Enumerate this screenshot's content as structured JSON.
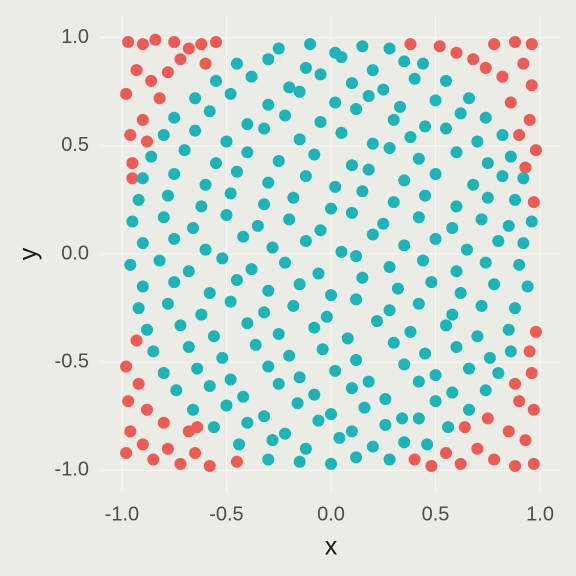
{
  "chart_data": {
    "type": "scatter",
    "x_label": "x",
    "y_label": "y",
    "xlim": [
      -1.1,
      1.1
    ],
    "ylim": [
      -1.1,
      1.1
    ],
    "xticks": [
      {
        "value": -1,
        "label": "-1.0"
      },
      {
        "value": -0.5,
        "label": "-0.5"
      },
      {
        "value": 0,
        "label": "0.0"
      },
      {
        "value": 0.5,
        "label": "0.5"
      },
      {
        "value": 1,
        "label": "1.0"
      }
    ],
    "yticks": [
      {
        "value": -1,
        "label": "-1.0"
      },
      {
        "value": -0.5,
        "label": "-0.5"
      },
      {
        "value": 0,
        "label": "0.0"
      },
      {
        "value": 0.5,
        "label": "0.5"
      },
      {
        "value": 1,
        "label": "1.0"
      }
    ],
    "grid": true,
    "series": [
      {
        "color": "#F05A55",
        "x": [
          -0.97,
          -0.9,
          -0.84,
          -0.75,
          -0.68,
          -0.62,
          -0.55,
          -0.93,
          -0.86,
          -0.98,
          -0.82,
          -0.9,
          -0.96,
          -0.88,
          -0.72,
          -0.6,
          -0.78,
          -0.95,
          -0.95,
          0.38,
          0.52,
          0.6,
          0.68,
          0.78,
          0.88,
          0.96,
          0.92,
          0.82,
          0.74,
          0.96,
          0.86,
          0.95,
          0.9,
          0.98,
          0.93,
          0.97,
          -0.98,
          -0.92,
          -0.97,
          -0.88,
          -0.96,
          -0.9,
          -0.98,
          -0.85,
          -0.78,
          -0.72,
          -0.65,
          -0.58,
          -0.68,
          -0.8,
          -0.45,
          -0.93,
          -0.64,
          0.4,
          0.48,
          0.55,
          0.62,
          0.7,
          0.78,
          0.88,
          0.97,
          0.93,
          0.85,
          0.75,
          0.97,
          0.9,
          0.96,
          0.88,
          0.64,
          0.98,
          0.95
        ],
        "values": [
          0.98,
          0.97,
          0.99,
          0.98,
          0.95,
          0.97,
          0.98,
          0.85,
          0.8,
          0.74,
          0.72,
          0.62,
          0.55,
          0.52,
          0.9,
          0.88,
          0.84,
          0.42,
          0.35,
          0.97,
          0.96,
          0.93,
          0.9,
          0.97,
          0.98,
          0.97,
          0.88,
          0.82,
          0.86,
          0.78,
          0.7,
          0.62,
          0.55,
          0.48,
          0.4,
          0.24,
          -0.52,
          -0.6,
          -0.68,
          -0.72,
          -0.82,
          -0.88,
          -0.92,
          -0.95,
          -0.9,
          -0.97,
          -0.92,
          -0.98,
          -0.82,
          -0.78,
          -0.96,
          -0.4,
          -0.8,
          -0.95,
          -0.98,
          -0.92,
          -0.97,
          -0.9,
          -0.95,
          -0.98,
          -0.97,
          -0.86,
          -0.82,
          -0.76,
          -0.72,
          -0.68,
          -0.55,
          -0.6,
          -0.8,
          -0.36,
          -0.45
        ]
      },
      {
        "color": "#19B5B8",
        "x": [
          -0.25,
          -0.1,
          0.02,
          0.15,
          0.28,
          -0.45,
          -0.3,
          -0.12,
          0.05,
          0.2,
          0.35,
          0.44,
          -0.55,
          -0.38,
          -0.2,
          -0.05,
          0.1,
          0.25,
          0.4,
          0.55,
          -0.65,
          -0.48,
          -0.3,
          -0.15,
          0.02,
          0.18,
          0.33,
          0.5,
          0.66,
          -0.75,
          -0.58,
          -0.4,
          -0.22,
          -0.05,
          0.12,
          0.3,
          0.45,
          0.62,
          0.74,
          -0.8,
          -0.65,
          -0.5,
          -0.32,
          -0.15,
          0.05,
          0.2,
          0.38,
          0.55,
          0.7,
          0.82,
          -0.86,
          -0.7,
          -0.55,
          -0.4,
          -0.25,
          -0.08,
          0.1,
          0.28,
          0.42,
          0.6,
          0.75,
          0.86,
          -0.9,
          -0.75,
          -0.6,
          -0.45,
          -0.3,
          -0.12,
          0.02,
          0.18,
          0.35,
          0.5,
          0.68,
          0.82,
          0.92,
          -0.92,
          -0.78,
          -0.62,
          -0.48,
          -0.32,
          -0.18,
          0.0,
          0.15,
          0.3,
          0.45,
          0.6,
          0.75,
          0.88,
          -0.95,
          -0.8,
          -0.66,
          -0.5,
          -0.35,
          -0.2,
          -0.05,
          0.1,
          0.25,
          0.42,
          0.58,
          0.72,
          0.85,
          0.96,
          -0.9,
          -0.75,
          -0.6,
          -0.42,
          -0.28,
          -0.12,
          0.05,
          0.2,
          0.35,
          0.5,
          0.65,
          0.8,
          0.92,
          -0.96,
          -0.82,
          -0.68,
          -0.52,
          -0.38,
          -0.22,
          -0.06,
          0.12,
          0.28,
          0.44,
          0.6,
          0.74,
          0.9,
          -0.9,
          -0.75,
          -0.58,
          -0.45,
          -0.3,
          -0.15,
          0.0,
          0.15,
          0.32,
          0.48,
          0.62,
          0.78,
          0.94,
          -0.92,
          -0.78,
          -0.62,
          -0.48,
          -0.32,
          -0.18,
          -0.02,
          0.12,
          0.28,
          0.42,
          0.58,
          0.72,
          0.88,
          -0.88,
          -0.72,
          -0.56,
          -0.4,
          -0.25,
          -0.08,
          0.08,
          0.22,
          0.38,
          0.55,
          0.7,
          0.85,
          -0.85,
          -0.68,
          -0.52,
          -0.36,
          -0.2,
          -0.04,
          0.12,
          0.3,
          0.45,
          0.6,
          0.76,
          0.86,
          -0.8,
          -0.64,
          -0.48,
          -0.3,
          -0.15,
          0.02,
          0.18,
          0.35,
          0.5,
          0.66,
          0.8,
          -0.74,
          -0.58,
          -0.42,
          -0.25,
          -0.08,
          0.1,
          0.26,
          0.42,
          0.58,
          0.74,
          -0.66,
          -0.5,
          -0.32,
          -0.16,
          0.0,
          0.16,
          0.34,
          0.5,
          0.66,
          -0.56,
          -0.4,
          -0.22,
          -0.06,
          0.1,
          0.26,
          0.42,
          0.56,
          -0.44,
          -0.28,
          -0.12,
          0.04,
          0.2,
          0.35,
          0.46,
          -0.3,
          -0.15,
          0.0,
          0.12,
          0.28
        ],
        "values": [
          0.95,
          0.97,
          0.93,
          0.96,
          0.95,
          0.88,
          0.9,
          0.86,
          0.91,
          0.85,
          0.89,
          0.88,
          0.8,
          0.82,
          0.77,
          0.83,
          0.79,
          0.76,
          0.81,
          0.8,
          0.72,
          0.74,
          0.69,
          0.75,
          0.7,
          0.73,
          0.68,
          0.71,
          0.72,
          0.63,
          0.66,
          0.6,
          0.64,
          0.61,
          0.67,
          0.62,
          0.59,
          0.65,
          0.63,
          0.55,
          0.57,
          0.52,
          0.58,
          0.53,
          0.56,
          0.51,
          0.54,
          0.58,
          0.52,
          0.55,
          0.45,
          0.48,
          0.42,
          0.47,
          0.43,
          0.46,
          0.41,
          0.49,
          0.44,
          0.47,
          0.42,
          0.45,
          0.35,
          0.37,
          0.32,
          0.38,
          0.33,
          0.36,
          0.31,
          0.39,
          0.34,
          0.37,
          0.32,
          0.36,
          0.35,
          0.25,
          0.27,
          0.22,
          0.28,
          0.23,
          0.26,
          0.21,
          0.29,
          0.24,
          0.27,
          0.22,
          0.26,
          0.25,
          0.15,
          0.17,
          0.12,
          0.18,
          0.13,
          0.16,
          0.11,
          0.19,
          0.14,
          0.17,
          0.12,
          0.16,
          0.13,
          0.15,
          0.05,
          0.07,
          0.02,
          0.08,
          0.03,
          0.06,
          0.01,
          0.09,
          0.04,
          0.07,
          0.02,
          0.06,
          0.05,
          -0.05,
          -0.03,
          -0.08,
          -0.02,
          -0.07,
          -0.04,
          -0.09,
          -0.01,
          -0.06,
          -0.03,
          -0.08,
          -0.04,
          -0.05,
          -0.15,
          -0.13,
          -0.18,
          -0.12,
          -0.17,
          -0.14,
          -0.19,
          -0.11,
          -0.16,
          -0.13,
          -0.18,
          -0.14,
          -0.15,
          -0.25,
          -0.23,
          -0.28,
          -0.22,
          -0.27,
          -0.24,
          -0.29,
          -0.21,
          -0.26,
          -0.23,
          -0.28,
          -0.24,
          -0.25,
          -0.35,
          -0.33,
          -0.38,
          -0.32,
          -0.37,
          -0.34,
          -0.39,
          -0.31,
          -0.36,
          -0.33,
          -0.38,
          -0.35,
          -0.45,
          -0.43,
          -0.48,
          -0.42,
          -0.47,
          -0.44,
          -0.49,
          -0.41,
          -0.46,
          -0.43,
          -0.48,
          -0.45,
          -0.55,
          -0.53,
          -0.58,
          -0.52,
          -0.57,
          -0.54,
          -0.59,
          -0.51,
          -0.56,
          -0.53,
          -0.55,
          -0.63,
          -0.61,
          -0.66,
          -0.6,
          -0.65,
          -0.62,
          -0.67,
          -0.59,
          -0.64,
          -0.63,
          -0.72,
          -0.7,
          -0.75,
          -0.69,
          -0.74,
          -0.71,
          -0.76,
          -0.68,
          -0.72,
          -0.8,
          -0.78,
          -0.83,
          -0.77,
          -0.82,
          -0.79,
          -0.76,
          -0.8,
          -0.88,
          -0.86,
          -0.9,
          -0.85,
          -0.89,
          -0.87,
          -0.88,
          -0.95,
          -0.96,
          -0.97,
          -0.94,
          -0.95
        ]
      }
    ]
  }
}
